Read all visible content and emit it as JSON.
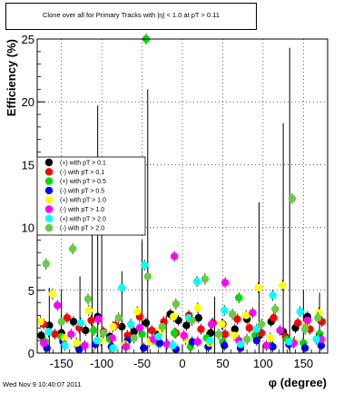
{
  "title": "Clone  over all for Primary Tracks with |η| < 1.0 at pT > 0.11",
  "timestamp": "Wed Nov  9 10:40:07 2011",
  "colors": {
    "frame": "#000000",
    "grid": "#000000",
    "background": "#ffffff"
  },
  "chart_data": {
    "type": "scatter",
    "title": "Clone  over all for Primary Tracks with |η| < 1.0 at pT > 0.11",
    "xlabel": "φ (degree)",
    "ylabel": "Efficiency (%)",
    "xlim": [
      -180,
      180
    ],
    "ylim": [
      0,
      25
    ],
    "xticks": [
      "-150",
      "-100",
      "-50",
      "0",
      "50",
      "100",
      "150"
    ],
    "yticks": [
      "0",
      "5",
      "10",
      "15",
      "20",
      "25"
    ],
    "grid": true,
    "legend_position": "left-middle",
    "series": [
      {
        "name": "(+) with pT > 0.1",
        "color": "#000000",
        "points": [
          [
            -175,
            1.4
          ],
          [
            -165,
            2.2
          ],
          [
            -150,
            1.6
          ],
          [
            -135,
            2.5
          ],
          [
            -120,
            1.8
          ],
          [
            -105,
            2.9
          ],
          [
            -90,
            1.3
          ],
          [
            -75,
            2.1
          ],
          [
            -60,
            1.7
          ],
          [
            -45,
            2.4
          ],
          [
            -30,
            1.5
          ],
          [
            -15,
            3.1
          ],
          [
            -5,
            2.6
          ],
          [
            5,
            2.2
          ],
          [
            20,
            2.8
          ],
          [
            35,
            1.6
          ],
          [
            50,
            2.3
          ],
          [
            65,
            1.9
          ],
          [
            80,
            2.7
          ],
          [
            95,
            1.4
          ],
          [
            110,
            2.5
          ],
          [
            125,
            1.7
          ],
          [
            140,
            2.0
          ],
          [
            155,
            2.9
          ],
          [
            170,
            1.5
          ]
        ]
      },
      {
        "name": "(-) with pT > 0.1",
        "color": "#ff0000",
        "points": [
          [
            -172,
            2.3
          ],
          [
            -158,
            1.5
          ],
          [
            -143,
            2.8
          ],
          [
            -128,
            2.0
          ],
          [
            -113,
            2.6
          ],
          [
            -98,
            1.7
          ],
          [
            -83,
            2.2
          ],
          [
            -68,
            1.4
          ],
          [
            -53,
            2.9
          ],
          [
            -38,
            1.8
          ],
          [
            -23,
            2.5
          ],
          [
            -8,
            1.6
          ],
          [
            8,
            3.0
          ],
          [
            23,
            1.9
          ],
          [
            38,
            2.4
          ],
          [
            53,
            1.5
          ],
          [
            68,
            2.7
          ],
          [
            83,
            2.0
          ],
          [
            98,
            1.6
          ],
          [
            113,
            2.8
          ],
          [
            128,
            1.3
          ],
          [
            143,
            2.4
          ],
          [
            158,
            1.9
          ],
          [
            173,
            2.5
          ]
        ]
      },
      {
        "name": "(+) with pT > 0.5",
        "color": "#00dd00",
        "points": [
          [
            -170,
            0.9
          ],
          [
            -150,
            1.3
          ],
          [
            -130,
            0.6
          ],
          [
            -110,
            1.8
          ],
          [
            -90,
            1.1
          ],
          [
            -70,
            0.7
          ],
          [
            -50,
            1.5
          ],
          [
            -45,
            25.0
          ],
          [
            -30,
            0.8
          ],
          [
            -10,
            1.6
          ],
          [
            10,
            0.5
          ],
          [
            30,
            1.2
          ],
          [
            50,
            0.9
          ],
          [
            70,
            4.4
          ],
          [
            90,
            1.4
          ],
          [
            110,
            0.6
          ],
          [
            130,
            1.1
          ],
          [
            150,
            0.8
          ],
          [
            170,
            1.5
          ]
        ]
      },
      {
        "name": "(-) with pT > 0.5",
        "color": "#0000ff",
        "points": [
          [
            -168,
            0.4
          ],
          [
            -148,
            0.9
          ],
          [
            -128,
            0.3
          ],
          [
            -108,
            0.7
          ],
          [
            -88,
            0.5
          ],
          [
            -68,
            1.0
          ],
          [
            -48,
            0.4
          ],
          [
            -28,
            0.8
          ],
          [
            -8,
            0.3
          ],
          [
            12,
            0.9
          ],
          [
            32,
            0.5
          ],
          [
            52,
            0.6
          ],
          [
            72,
            0.4
          ],
          [
            92,
            1.0
          ],
          [
            112,
            0.5
          ],
          [
            132,
            0.7
          ],
          [
            152,
            0.4
          ],
          [
            172,
            0.6
          ]
        ]
      },
      {
        "name": "(+) with pT > 1.0",
        "color": "#ffff00",
        "points": [
          [
            -176,
            2.5
          ],
          [
            -161,
            4.7
          ],
          [
            -146,
            1.2
          ],
          [
            -131,
            0.8
          ],
          [
            -116,
            3.4
          ],
          [
            -101,
            1.0
          ],
          [
            -86,
            2.1
          ],
          [
            -71,
            0.7
          ],
          [
            -56,
            3.3
          ],
          [
            -41,
            0.9
          ],
          [
            -26,
            1.8
          ],
          [
            -11,
            2.9
          ],
          [
            4,
            1.1
          ],
          [
            19,
            3.6
          ],
          [
            34,
            0.8
          ],
          [
            49,
            2.3
          ],
          [
            64,
            1.4
          ],
          [
            79,
            3.0
          ],
          [
            94,
            5.2
          ],
          [
            109,
            1.2
          ],
          [
            124,
            5.4
          ],
          [
            139,
            0.9
          ],
          [
            154,
            2.4
          ],
          [
            169,
            3.2
          ]
        ]
      },
      {
        "name": "(-) with pT > 1.0",
        "color": "#ff00ff",
        "points": [
          [
            -172,
            0.8
          ],
          [
            -155,
            3.8
          ],
          [
            -138,
            1.5
          ],
          [
            -121,
            0.6
          ],
          [
            -104,
            2.7
          ],
          [
            -87,
            1.2
          ],
          [
            -70,
            0.5
          ],
          [
            -53,
            2.0
          ],
          [
            -36,
            1.1
          ],
          [
            -19,
            0.7
          ],
          [
            -10,
            7.7
          ],
          [
            2,
            1.4
          ],
          [
            19,
            0.9
          ],
          [
            36,
            2.3
          ],
          [
            53,
            5.6
          ],
          [
            70,
            1.0
          ],
          [
            87,
            3.2
          ],
          [
            104,
            0.6
          ],
          [
            121,
            1.8
          ],
          [
            138,
            0.8
          ],
          [
            155,
            2.6
          ],
          [
            172,
            1.1
          ]
        ]
      },
      {
        "name": "(+) with pT > 2.0",
        "color": "#00ffff",
        "points": [
          [
            -166,
            1.7
          ],
          [
            -146,
            0.6
          ],
          [
            -126,
            2.4
          ],
          [
            -106,
            1.0
          ],
          [
            -86,
            0.4
          ],
          [
            -75,
            5.2
          ],
          [
            -64,
            2.3
          ],
          [
            -47,
            7.0
          ],
          [
            -30,
            1.3
          ],
          [
            -12,
            0.6
          ],
          [
            8,
            2.8
          ],
          [
            18,
            5.7
          ],
          [
            34,
            1.0
          ],
          [
            52,
            3.4
          ],
          [
            72,
            0.7
          ],
          [
            92,
            1.9
          ],
          [
            112,
            4.6
          ],
          [
            132,
            0.9
          ],
          [
            146,
            3.3
          ],
          [
            166,
            1.1
          ]
        ]
      },
      {
        "name": "(-) with pT > 2.0",
        "color": "#66cc44",
        "points": [
          [
            -169,
            7.1
          ],
          [
            -150,
            2.5
          ],
          [
            -136,
            8.3
          ],
          [
            -117,
            4.3
          ],
          [
            -98,
            1.6
          ],
          [
            -79,
            2.8
          ],
          [
            -60,
            1.2
          ],
          [
            -43,
            6.1
          ],
          [
            -25,
            2.1
          ],
          [
            -8,
            3.9
          ],
          [
            12,
            2.6
          ],
          [
            28,
            5.9
          ],
          [
            45,
            1.5
          ],
          [
            62,
            3.1
          ],
          [
            80,
            1.1
          ],
          [
            98,
            2.3
          ],
          [
            115,
            3.5
          ],
          [
            136,
            12.3
          ],
          [
            152,
            1.9
          ],
          [
            168,
            2.8
          ]
        ]
      }
    ],
    "error_spikes": [
      {
        "x": -165,
        "y": 5.2
      },
      {
        "x": -150,
        "y": 5.1
      },
      {
        "x": -127,
        "y": 6.1
      },
      {
        "x": -112,
        "y": 11.8
      },
      {
        "x": -105,
        "y": 19.7
      },
      {
        "x": -100,
        "y": 10.0
      },
      {
        "x": -75,
        "y": 6.5
      },
      {
        "x": -50,
        "y": 9.0
      },
      {
        "x": -43,
        "y": 21.0
      },
      {
        "x": -20,
        "y": 3.0
      },
      {
        "x": 40,
        "y": 4.5
      },
      {
        "x": 95,
        "y": 12.0
      },
      {
        "x": 133,
        "y": 24.3
      },
      {
        "x": 125,
        "y": 18.3
      },
      {
        "x": 150,
        "y": 5.0
      },
      {
        "x": 170,
        "y": 4.8
      }
    ]
  }
}
